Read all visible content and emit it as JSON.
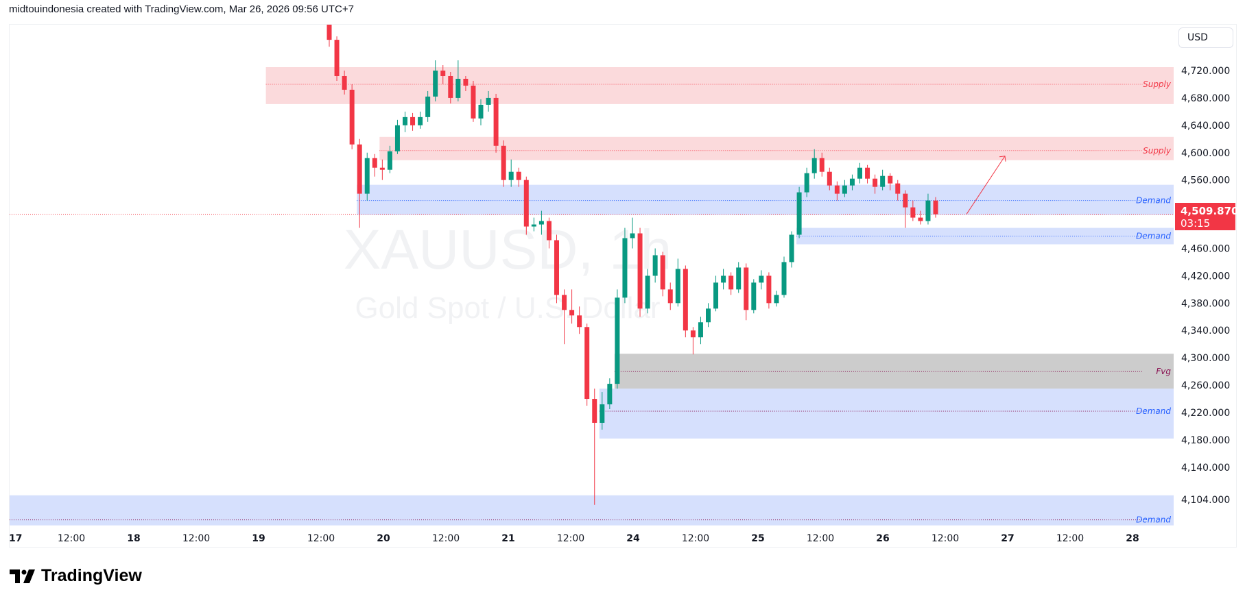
{
  "header": {
    "attribution": "midtouindonesia created with TradingView.com, Mar 26, 2026 09:56 UTC+7"
  },
  "watermark": {
    "symbol": "XAUUSD, 1h",
    "description": "Gold Spot / U.S. Dollar"
  },
  "currency_button": "USD",
  "current_price": {
    "value": "4,509.870",
    "countdown": "03:15",
    "color": "#f23645"
  },
  "footer": {
    "logo_text": "TradingView"
  },
  "colors": {
    "up": "#089981",
    "down": "#f23645",
    "supply": "#fbdadc",
    "demand": "#d6e0fd",
    "fvg": "#cccccc"
  },
  "chart_data": {
    "type": "candlestick",
    "symbol": "XAUUSD",
    "interval": "1h",
    "ylim": [
      4050,
      4790
    ],
    "y_ticks": [
      "4,720.000",
      "4,680.000",
      "4,640.000",
      "4,600.000",
      "4,560.000",
      "4,460.000",
      "4,420.000",
      "4,380.000",
      "4,340.000",
      "4,300.000",
      "4,260.000",
      "4,220.000",
      "4,180.000",
      "4,140.000",
      "4,104.000"
    ],
    "y_tick_values": [
      4720,
      4680,
      4640,
      4600,
      4560,
      4460,
      4420,
      4380,
      4340,
      4300,
      4260,
      4220,
      4180,
      4140,
      4104
    ],
    "x_ticks": [
      "17",
      "12:00",
      "18",
      "12:00",
      "19",
      "12:00",
      "20",
      "12:00",
      "21",
      "12:00",
      "24",
      "12:00",
      "25",
      "12:00",
      "26",
      "12:00",
      "27",
      "12:00",
      "28"
    ],
    "candles_ohlc": [
      [
        4790,
        4800,
        4755,
        4765
      ],
      [
        4765,
        4770,
        4705,
        4712
      ],
      [
        4712,
        4720,
        4685,
        4692
      ],
      [
        4692,
        4700,
        4605,
        4612
      ],
      [
        4612,
        4620,
        4490,
        4540
      ],
      [
        4540,
        4600,
        4530,
        4592
      ],
      [
        4592,
        4598,
        4565,
        4578
      ],
      [
        4578,
        4590,
        4560,
        4575
      ],
      [
        4575,
        4610,
        4570,
        4602
      ],
      [
        4602,
        4648,
        4598,
        4640
      ],
      [
        4640,
        4660,
        4630,
        4652
      ],
      [
        4652,
        4658,
        4632,
        4640
      ],
      [
        4640,
        4660,
        4635,
        4652
      ],
      [
        4652,
        4690,
        4645,
        4682
      ],
      [
        4682,
        4735,
        4675,
        4720
      ],
      [
        4720,
        4728,
        4700,
        4712
      ],
      [
        4712,
        4718,
        4672,
        4680
      ],
      [
        4680,
        4735,
        4675,
        4708
      ],
      [
        4708,
        4712,
        4690,
        4698
      ],
      [
        4698,
        4705,
        4645,
        4650
      ],
      [
        4650,
        4678,
        4640,
        4670
      ],
      [
        4670,
        4690,
        4660,
        4680
      ],
      [
        4680,
        4686,
        4600,
        4610
      ],
      [
        4610,
        4618,
        4550,
        4560
      ],
      [
        4560,
        4590,
        4550,
        4572
      ],
      [
        4572,
        4578,
        4550,
        4560
      ],
      [
        4560,
        4565,
        4480,
        4492
      ],
      [
        4492,
        4505,
        4485,
        4495
      ],
      [
        4495,
        4515,
        4480,
        4500
      ],
      [
        4500,
        4505,
        4460,
        4472
      ],
      [
        4472,
        4480,
        4380,
        4392
      ],
      [
        4392,
        4400,
        4320,
        4370
      ],
      [
        4370,
        4400,
        4350,
        4362
      ],
      [
        4362,
        4375,
        4335,
        4345
      ],
      [
        4345,
        4350,
        4230,
        4240
      ],
      [
        4240,
        4255,
        4085,
        4205
      ],
      [
        4205,
        4250,
        4195,
        4232
      ],
      [
        4232,
        4270,
        4225,
        4262
      ],
      [
        4262,
        4400,
        4255,
        4388
      ],
      [
        4388,
        4490,
        4380,
        4475
      ],
      [
        4475,
        4505,
        4460,
        4482
      ],
      [
        4482,
        4490,
        4360,
        4372
      ],
      [
        4372,
        4430,
        4365,
        4420
      ],
      [
        4420,
        4460,
        4410,
        4450
      ],
      [
        4450,
        4455,
        4390,
        4400
      ],
      [
        4400,
        4410,
        4370,
        4380
      ],
      [
        4380,
        4445,
        4375,
        4430
      ],
      [
        4430,
        4435,
        4330,
        4340
      ],
      [
        4340,
        4345,
        4305,
        4330
      ],
      [
        4330,
        4360,
        4320,
        4352
      ],
      [
        4352,
        4380,
        4345,
        4372
      ],
      [
        4372,
        4420,
        4368,
        4410
      ],
      [
        4410,
        4430,
        4400,
        4420
      ],
      [
        4420,
        4425,
        4392,
        4400
      ],
      [
        4400,
        4440,
        4395,
        4432
      ],
      [
        4432,
        4438,
        4355,
        4370
      ],
      [
        4370,
        4415,
        4365,
        4410
      ],
      [
        4410,
        4428,
        4400,
        4420
      ],
      [
        4420,
        4425,
        4372,
        4380
      ],
      [
        4380,
        4398,
        4375,
        4392
      ],
      [
        4392,
        4448,
        4388,
        4440
      ],
      [
        4440,
        4485,
        4432,
        4480
      ],
      [
        4480,
        4550,
        4475,
        4542
      ],
      [
        4542,
        4578,
        4535,
        4570
      ],
      [
        4570,
        4605,
        4562,
        4592
      ],
      [
        4592,
        4600,
        4565,
        4572
      ],
      [
        4572,
        4578,
        4545,
        4552
      ],
      [
        4552,
        4558,
        4530,
        4540
      ],
      [
        4540,
        4560,
        4535,
        4552
      ],
      [
        4552,
        4568,
        4545,
        4562
      ],
      [
        4562,
        4585,
        4555,
        4578
      ],
      [
        4578,
        4582,
        4555,
        4562
      ],
      [
        4562,
        4568,
        4540,
        4550
      ],
      [
        4550,
        4575,
        4545,
        4566
      ],
      [
        4566,
        4570,
        4545,
        4555
      ],
      [
        4555,
        4560,
        4530,
        4540
      ],
      [
        4540,
        4545,
        4490,
        4520
      ],
      [
        4520,
        4530,
        4500,
        4505
      ],
      [
        4505,
        4515,
        4495,
        4500
      ],
      [
        4500,
        4540,
        4495,
        4530
      ],
      [
        4530,
        4535,
        4505,
        4510
      ]
    ],
    "zones": [
      {
        "label": "Supply",
        "kind": "supply",
        "top": 4725,
        "bottom": 4671,
        "mid": 4700,
        "start_candle": -8
      },
      {
        "label": "Supply",
        "kind": "supply",
        "top": 4623,
        "bottom": 4589,
        "mid": 4603,
        "start_candle": 7
      },
      {
        "label": "Demand",
        "kind": "demand",
        "top": 4553,
        "bottom": 4509,
        "mid": 4530,
        "start_candle": 4
      },
      {
        "label": "Demand",
        "kind": "demand",
        "top": 4490,
        "bottom": 4466,
        "mid": 4478,
        "start_candle": 62
      },
      {
        "label": "Fvg",
        "kind": "fvg",
        "top": 4306,
        "bottom": 4255,
        "mid": 4280,
        "start_candle": 38
      },
      {
        "label": "Demand",
        "kind": "demand",
        "top": 4255,
        "bottom": 4182,
        "mid": 4222,
        "start_candle": 36
      },
      {
        "label": "Demand",
        "kind": "demand",
        "top": 4099,
        "bottom": 4055,
        "mid": 4063,
        "start_candle": -60
      }
    ],
    "current_price": 4509.87,
    "projection_arrow": {
      "from_price": 4510,
      "to_price": 4595
    }
  }
}
